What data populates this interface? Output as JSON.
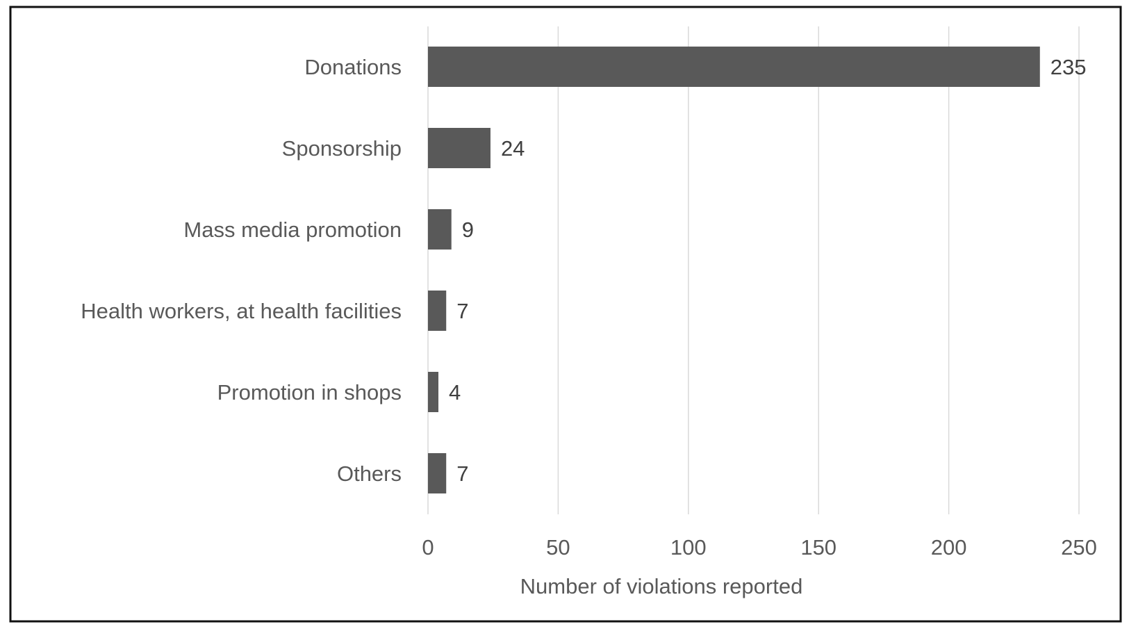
{
  "chart_data": {
    "type": "bar",
    "orientation": "horizontal",
    "categories": [
      "Donations",
      "Sponsorship",
      "Mass media promotion",
      "Health workers, at health facilities",
      "Promotion in shops",
      "Others"
    ],
    "values": [
      235,
      24,
      9,
      7,
      4,
      7
    ],
    "data_labels": [
      "235",
      "24",
      "9",
      "7",
      "4",
      "7"
    ],
    "title": "",
    "xlabel": "Number of violations reported",
    "ylabel": "",
    "xlim": [
      0,
      250
    ],
    "xticks": [
      0,
      50,
      100,
      150,
      200,
      250
    ],
    "xtick_labels": [
      "0",
      "50",
      "100",
      "150",
      "200",
      "250"
    ],
    "grid": "vertical",
    "legend": "none",
    "bar_color": "#595959",
    "gridline_color": "#d9d9d9",
    "text_color": "#595959"
  }
}
